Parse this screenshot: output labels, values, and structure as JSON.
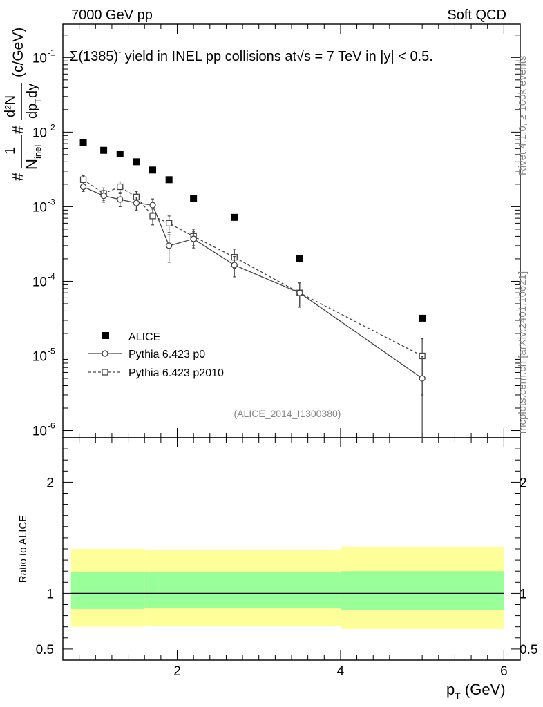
{
  "header": {
    "left": "7000 GeV pp",
    "right": "Soft QCD"
  },
  "plot_title": {
    "part1": "Σ(1385)",
    "sup": "-",
    "part2": " yield in INEL pp collisions at",
    "sqrt": "√",
    "part3": "s = 7 TeV in |y| < 0.5."
  },
  "ylabel": "1/N_inel d²N/dp_T dy (c/GeV)",
  "ylabel_parts": {
    "hash1": "#",
    "one": "1",
    "n": "N",
    "inel": "inel",
    "hash2": "#",
    "d2n": "d²N",
    "dpt": "dp",
    "t": "T",
    "dy": "dy",
    "units": "(c/GeV)"
  },
  "side_labels": {
    "rivet": "Rivet 4.1.0, ≥ 100k events",
    "mcplots": "mcplots.cern.ch [arXiv:2401.10621]"
  },
  "analysis_id": "(ALICE_2014_I1300380)",
  "ratio_ylabel": "Ratio to ALICE",
  "xlabel": {
    "p": "p",
    "sub": "T",
    "units": " (GeV)"
  },
  "main_ticks": {
    "y": [
      {
        "exp": "-6",
        "base": "10",
        "value": 1e-06
      },
      {
        "exp": "-5",
        "base": "10",
        "value": 1e-05
      },
      {
        "exp": "-4",
        "base": "10",
        "value": 0.0001
      },
      {
        "exp": "-3",
        "base": "10",
        "value": 0.001
      },
      {
        "exp": "-2",
        "base": "10",
        "value": 0.01
      },
      {
        "exp": "-1",
        "base": "10",
        "value": 0.1
      }
    ]
  },
  "ratio_ticks": {
    "y": [
      {
        "label": "0.5",
        "value": 0.5
      },
      {
        "label": "1",
        "value": 1
      },
      {
        "label": "2",
        "value": 2
      }
    ],
    "x": [
      {
        "label": "2",
        "value": 2
      },
      {
        "label": "4",
        "value": 4
      },
      {
        "label": "6",
        "value": 6
      }
    ]
  },
  "legend": [
    {
      "label": "ALICE",
      "style": "data"
    },
    {
      "label": "Pythia 6.423 p0",
      "style": "p0"
    },
    {
      "label": "Pythia 6.423 p2010",
      "style": "p2010"
    }
  ],
  "chart_data": {
    "type": "scatter",
    "title": "Σ(1385)- yield in INEL pp collisions at √s = 7 TeV in |y| < 0.5.",
    "xlabel": "p_T (GeV)",
    "ylabel": "1/N_inel d²N/dp_T dy (c/GeV)",
    "xlim": [
      0.6,
      6.2
    ],
    "ylim": [
      8e-07,
      0.28
    ],
    "yscale": "log",
    "series": [
      {
        "name": "ALICE",
        "x": [
          0.85,
          1.1,
          1.3,
          1.5,
          1.7,
          1.9,
          2.2,
          2.7,
          3.5,
          5.0
        ],
        "y": [
          0.0072,
          0.0057,
          0.0051,
          0.004,
          0.0031,
          0.0023,
          0.0013,
          0.00072,
          0.0002,
          3.2e-05
        ]
      },
      {
        "name": "Pythia 6.423 p0",
        "x": [
          0.85,
          1.1,
          1.3,
          1.5,
          1.7,
          1.9,
          2.2,
          2.7,
          3.5,
          5.0
        ],
        "y": [
          0.00185,
          0.0014,
          0.00125,
          0.00112,
          0.00105,
          0.0003,
          0.00037,
          0.000165,
          7e-05,
          5e-06
        ],
        "err": [
          0.00025,
          0.00025,
          0.00025,
          0.00022,
          0.00022,
          0.00012,
          9e-05,
          5e-05,
          2.5e-05,
          4.8e-06
        ]
      },
      {
        "name": "Pythia 6.423 p2010",
        "x": [
          0.85,
          1.1,
          1.3,
          1.5,
          1.7,
          1.9,
          2.2,
          2.7,
          3.5,
          5.0
        ],
        "y": [
          0.0023,
          0.0015,
          0.00185,
          0.00135,
          0.00075,
          0.0006,
          0.0004,
          0.00021,
          7e-05,
          1e-05
        ],
        "err": [
          0.0003,
          0.00028,
          0.0003,
          0.00025,
          0.00018,
          0.00015,
          0.0001,
          6e-05,
          2.5e-05,
          7e-06
        ]
      }
    ],
    "ratio_panel": {
      "ylabel": "Ratio to ALICE",
      "ylim": [
        0.4,
        2.4
      ],
      "reference": 1.0,
      "bands": [
        {
          "x0": 0.7,
          "x1": 1.6,
          "inner": [
            0.86,
            1.19
          ],
          "outer": [
            0.7,
            1.4
          ]
        },
        {
          "x0": 1.6,
          "x1": 4.0,
          "inner": [
            0.87,
            1.19
          ],
          "outer": [
            0.71,
            1.39
          ]
        },
        {
          "x0": 4.0,
          "x1": 6.0,
          "inner": [
            0.85,
            1.2
          ],
          "outer": [
            0.68,
            1.42
          ]
        }
      ]
    },
    "colors": {
      "data": "#000000",
      "mc": "#444444",
      "inner_band": "#99ff99",
      "outer_band": "#ffff99"
    }
  }
}
